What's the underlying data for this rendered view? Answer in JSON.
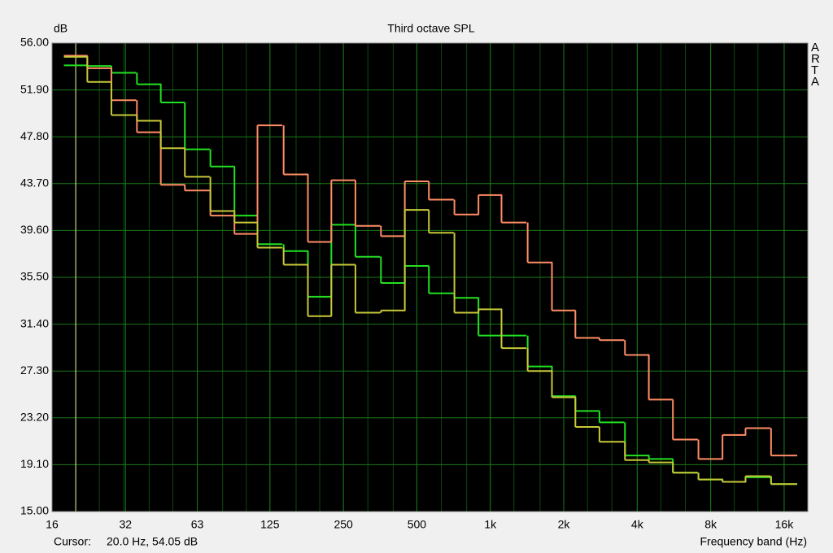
{
  "chart_data": {
    "type": "line",
    "step": "mid",
    "title": "Third octave SPL",
    "ylabel": "dB",
    "xlabel": "Frequency band (Hz)",
    "brand": "ARTA",
    "cursor": {
      "label": "Cursor:",
      "text": "20.0 Hz, 54.05 dB"
    },
    "log_x": true,
    "grid": true,
    "x": [
      20,
      25,
      31.5,
      40,
      50,
      63,
      80,
      100,
      125,
      160,
      200,
      250,
      315,
      400,
      500,
      630,
      800,
      1000,
      1250,
      1600,
      2000,
      2500,
      3150,
      4000,
      5000,
      6300,
      8000,
      10000,
      12500,
      16000
    ],
    "series": [
      {
        "color": "#22e022",
        "values": [
          54.05,
          54.0,
          53.4,
          52.4,
          50.8,
          46.7,
          45.2,
          40.9,
          38.4,
          37.8,
          33.8,
          40.1,
          37.3,
          35.0,
          36.5,
          34.1,
          33.7,
          30.4,
          30.4,
          27.7,
          25.1,
          23.8,
          22.8,
          19.9,
          19.6,
          18.4,
          17.8,
          17.6,
          18.0,
          17.4
        ]
      },
      {
        "color": "#ff8c66",
        "values": [
          54.9,
          53.8,
          51.0,
          48.2,
          43.6,
          43.1,
          40.9,
          39.3,
          48.8,
          44.5,
          38.6,
          44.0,
          40.0,
          39.1,
          43.9,
          42.3,
          41.0,
          42.7,
          40.3,
          36.8,
          32.6,
          30.2,
          30.0,
          28.7,
          24.8,
          21.3,
          19.6,
          21.7,
          22.3,
          19.9
        ]
      },
      {
        "color": "#c8c83a",
        "values": [
          54.8,
          52.6,
          49.7,
          49.2,
          46.8,
          44.3,
          41.3,
          40.3,
          38.1,
          36.6,
          32.1,
          36.6,
          32.4,
          32.6,
          41.4,
          39.4,
          32.4,
          32.7,
          29.3,
          27.3,
          25.0,
          22.4,
          21.1,
          19.5,
          19.3,
          18.4,
          17.8,
          17.6,
          18.1,
          17.4
        ]
      }
    ],
    "xlim": [
      16,
      20000
    ],
    "xticks": [
      16,
      32,
      63,
      125,
      250,
      500,
      {
        "value": 1000,
        "label": "1k"
      },
      {
        "value": 2000,
        "label": "2k"
      },
      {
        "value": 4000,
        "label": "4k"
      },
      {
        "value": 8000,
        "label": "8k"
      },
      {
        "value": 16000,
        "label": "16k"
      }
    ],
    "ylim": [
      15,
      56
    ],
    "yticks": [
      {
        "value": 15,
        "label": "15.00"
      },
      {
        "value": 19.1,
        "label": "19.10"
      },
      {
        "value": 23.2,
        "label": "23.20"
      },
      {
        "value": 27.3,
        "label": "27.30"
      },
      {
        "value": 31.4,
        "label": "31.40"
      },
      {
        "value": 35.5,
        "label": "35.50"
      },
      {
        "value": 39.6,
        "label": "39.60"
      },
      {
        "value": 43.7,
        "label": "43.70"
      },
      {
        "value": 47.8,
        "label": "47.80"
      },
      {
        "value": 51.9,
        "label": "51.90"
      },
      {
        "value": 56,
        "label": "56.00"
      }
    ]
  }
}
